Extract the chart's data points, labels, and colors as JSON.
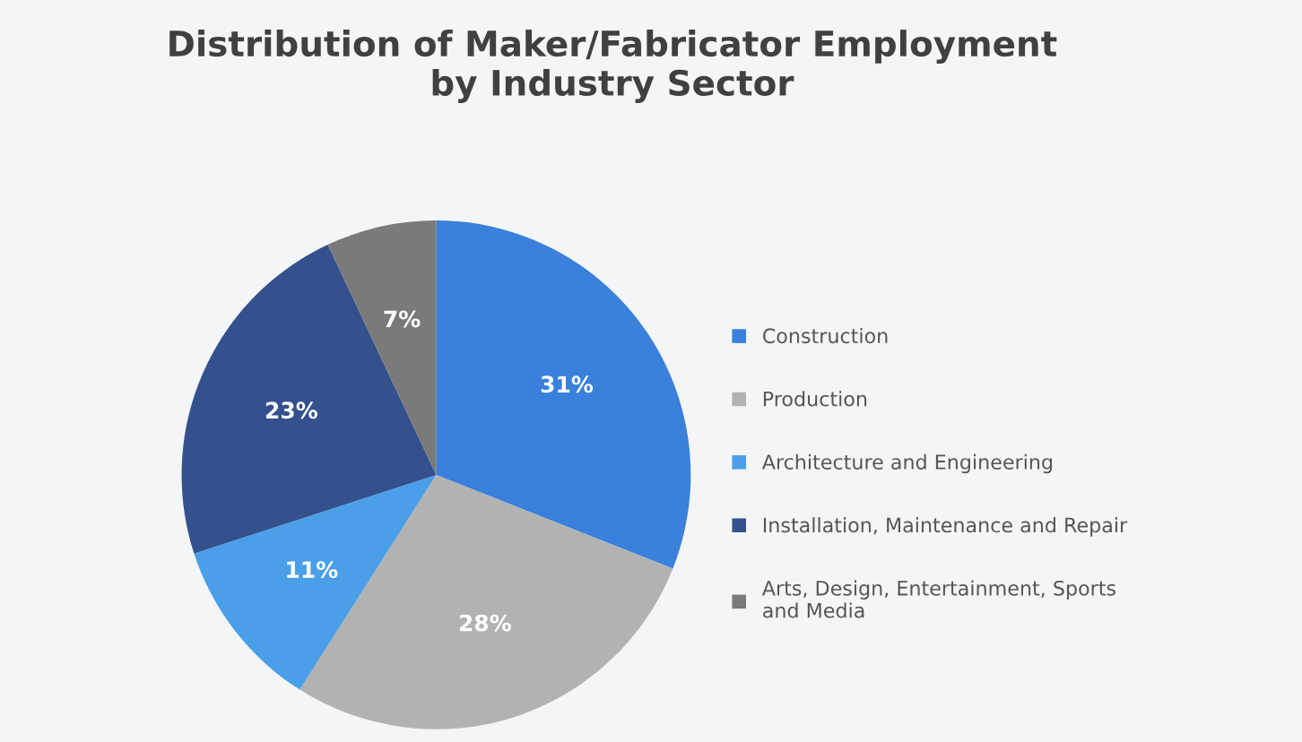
{
  "chart_data": {
    "type": "pie",
    "title": "Distribution of Maker/Fabricator Employment\nby Industry Sector",
    "categories": [
      "Construction",
      "Production",
      "Architecture and Engineering",
      "Installation, Maintenance and Repair",
      "Arts, Design, Entertainment, Sports\nand Media"
    ],
    "values": [
      31,
      28,
      11,
      23,
      7
    ],
    "value_labels": [
      "31%",
      "28%",
      "11%",
      "23%",
      "7%"
    ],
    "colors": [
      "#3a80dc",
      "#b2b2b2",
      "#4a9fe8",
      "#34518e",
      "#7a7a7a"
    ],
    "legend": "right"
  }
}
